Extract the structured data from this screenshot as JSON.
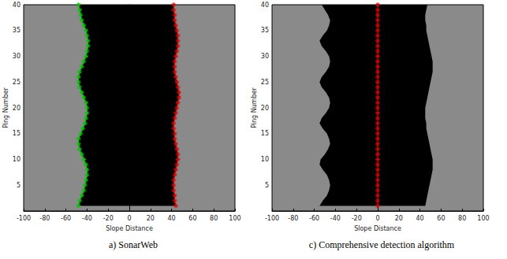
{
  "chart_data": [
    {
      "type": "line",
      "caption": "a) SonarWeb",
      "xlabel": "Slope Distance",
      "ylabel": "Ping Number",
      "xlim": [
        -100,
        100
      ],
      "xticks": [
        -100,
        -80,
        -60,
        -40,
        -20,
        0,
        20,
        40,
        60,
        80,
        100
      ],
      "ylim": [
        0,
        40
      ],
      "yticks": [
        5,
        10,
        15,
        20,
        25,
        30,
        35,
        40
      ],
      "grid": false,
      "water_column": {
        "y": [
          1,
          2,
          3,
          4,
          5,
          6,
          7,
          8,
          9,
          10,
          11,
          12,
          13,
          14,
          15,
          16,
          17,
          18,
          19,
          20,
          21,
          22,
          23,
          24,
          25,
          26,
          27,
          28,
          29,
          30,
          31,
          32,
          33,
          34,
          35,
          36,
          37,
          38,
          39,
          40
        ],
        "left": [
          -48,
          -47,
          -45,
          -43,
          -42,
          -41,
          -40,
          -40,
          -41,
          -43,
          -45,
          -47,
          -48,
          -48,
          -46,
          -44,
          -42,
          -41,
          -40,
          -40,
          -41,
          -43,
          -45,
          -47,
          -48,
          -48,
          -47,
          -45,
          -43,
          -41,
          -40,
          -39,
          -39,
          -40,
          -41,
          -43,
          -45,
          -46,
          -47,
          -48
        ],
        "right": [
          44,
          43,
          43,
          42,
          42,
          42,
          43,
          44,
          45,
          46,
          46,
          45,
          44,
          43,
          43,
          42,
          42,
          43,
          44,
          45,
          46,
          47,
          47,
          46,
          45,
          44,
          43,
          43,
          43,
          44,
          45,
          46,
          46,
          46,
          45,
          44,
          43,
          43,
          42,
          42
        ]
      },
      "series": [
        {
          "color": "#00c800",
          "marker": "asterisk",
          "line_style": "solid",
          "x": [
            -48,
            -47,
            -45,
            -43,
            -42,
            -41,
            -40,
            -40,
            -41,
            -43,
            -45,
            -47,
            -48,
            -48,
            -46,
            -44,
            -42,
            -41,
            -40,
            -40,
            -41,
            -43,
            -45,
            -47,
            -48,
            -48,
            -47,
            -45,
            -43,
            -41,
            -40,
            -39,
            -39,
            -40,
            -41,
            -43,
            -45,
            -46,
            -47,
            -48
          ],
          "y": [
            1,
            2,
            3,
            4,
            5,
            6,
            7,
            8,
            9,
            10,
            11,
            12,
            13,
            14,
            15,
            16,
            17,
            18,
            19,
            20,
            21,
            22,
            23,
            24,
            25,
            26,
            27,
            28,
            29,
            30,
            31,
            32,
            33,
            34,
            35,
            36,
            37,
            38,
            39,
            40
          ]
        },
        {
          "color": "#e00000",
          "marker": "asterisk",
          "line_style": "solid",
          "x": [
            44,
            43,
            43,
            42,
            42,
            42,
            43,
            44,
            45,
            46,
            46,
            45,
            44,
            43,
            43,
            42,
            42,
            43,
            44,
            45,
            46,
            47,
            47,
            46,
            45,
            44,
            43,
            43,
            43,
            44,
            45,
            46,
            46,
            46,
            45,
            44,
            43,
            43,
            42,
            42
          ],
          "y": [
            1,
            2,
            3,
            4,
            5,
            6,
            7,
            8,
            9,
            10,
            11,
            12,
            13,
            14,
            15,
            16,
            17,
            18,
            19,
            20,
            21,
            22,
            23,
            24,
            25,
            26,
            27,
            28,
            29,
            30,
            31,
            32,
            33,
            34,
            35,
            36,
            37,
            38,
            39,
            40
          ]
        }
      ]
    },
    {
      "type": "line",
      "caption": "c) Comprehensive detection algorithm",
      "xlabel": "Slope Distance",
      "ylabel": "Ping Number",
      "xlim": [
        -100,
        100
      ],
      "xticks": [
        -100,
        -80,
        -60,
        -40,
        -20,
        0,
        20,
        40,
        60,
        80,
        100
      ],
      "ylim": [
        0,
        40
      ],
      "yticks": [
        5,
        10,
        15,
        20,
        25,
        30,
        35,
        40
      ],
      "grid": false,
      "water_column": {
        "y": [
          1,
          2,
          3,
          4,
          5,
          6,
          7,
          8,
          9,
          10,
          11,
          12,
          13,
          14,
          15,
          16,
          17,
          18,
          19,
          20,
          21,
          22,
          23,
          24,
          25,
          26,
          27,
          28,
          29,
          30,
          31,
          32,
          33,
          34,
          35,
          36,
          37,
          38,
          39,
          40
        ],
        "left": [
          -55,
          -52,
          -48,
          -46,
          -45,
          -46,
          -48,
          -52,
          -55,
          -54,
          -50,
          -47,
          -45,
          -46,
          -48,
          -52,
          -55,
          -53,
          -49,
          -46,
          -45,
          -46,
          -49,
          -53,
          -55,
          -53,
          -49,
          -46,
          -45,
          -46,
          -49,
          -53,
          -55,
          -52,
          -48,
          -46,
          -45,
          -47,
          -50,
          -53
        ],
        "right": [
          45,
          46,
          47,
          48,
          49,
          50,
          51,
          52,
          52,
          52,
          51,
          50,
          49,
          48,
          47,
          46,
          46,
          45,
          45,
          45,
          46,
          47,
          48,
          49,
          50,
          51,
          52,
          52,
          52,
          51,
          50,
          49,
          48,
          47,
          46,
          46,
          45,
          45,
          46,
          47
        ]
      },
      "series": [
        {
          "color": "#e00000",
          "marker": "asterisk",
          "line_style": "solid",
          "x": [
            0,
            0,
            0,
            0,
            0,
            0,
            0,
            0,
            0,
            0,
            0,
            0,
            0,
            0,
            0,
            0,
            0,
            0,
            0,
            0,
            0,
            0,
            0,
            0,
            0,
            0,
            0,
            0,
            0,
            0,
            0,
            0,
            0,
            0,
            0,
            0,
            0,
            0,
            0,
            0
          ],
          "y": [
            1,
            2,
            3,
            4,
            5,
            6,
            7,
            8,
            9,
            10,
            11,
            12,
            13,
            14,
            15,
            16,
            17,
            18,
            19,
            20,
            21,
            22,
            23,
            24,
            25,
            26,
            27,
            28,
            29,
            30,
            31,
            32,
            33,
            34,
            35,
            36,
            37,
            38,
            39,
            40
          ]
        }
      ]
    }
  ]
}
